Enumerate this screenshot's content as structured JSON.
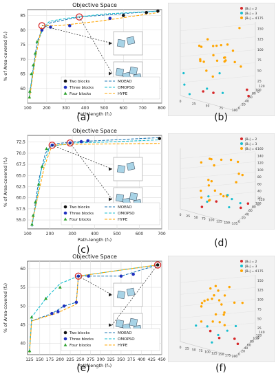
{
  "chart_data": [
    {
      "type": "line",
      "panel_label": "(a)",
      "title": "Objective Space",
      "xlabel": "Path-length (f₁)",
      "ylabel": "% of Area-covered (f₂)",
      "xlim": [
        100,
        800
      ],
      "ylim": [
        55,
        87
      ],
      "xticks": [
        "100",
        "200",
        "300",
        "400",
        "500",
        "600",
        "700",
        "800"
      ],
      "yticks": [
        "60",
        "65",
        "70",
        "75",
        "80",
        "85"
      ],
      "grid": true,
      "legend_position": "lower-right",
      "legend": [
        "Two blocks",
        "Three blocks",
        "Four blocks",
        "MOEAD",
        "OMOPSO",
        "HYPE"
      ],
      "series": [
        {
          "name": "MOEAD",
          "color": "#1f77b4",
          "x": [
            110,
            130,
            150,
            175,
            220,
            370,
            780
          ],
          "y": [
            57,
            67,
            76,
            80,
            82.5,
            84.5,
            86.5
          ]
        },
        {
          "name": "OMOPSO",
          "color": "#17becf",
          "x": [
            110,
            135,
            160,
            185,
            215,
            300,
            500,
            780
          ],
          "y": [
            58,
            69,
            77,
            81,
            83,
            84,
            85.5,
            86.5
          ]
        },
        {
          "name": "HYPE",
          "color": "#ffa500",
          "x": [
            110,
            140,
            175,
            260,
            470,
            780
          ],
          "y": [
            56.5,
            70,
            81.5,
            81.5,
            83,
            86
          ]
        }
      ],
      "points": [
        {
          "group": "Four blocks",
          "x": [
            110,
            112,
            120,
            130,
            140,
            150
          ],
          "y": [
            57,
            59,
            65,
            68,
            72,
            76
          ]
        },
        {
          "group": "Three blocks",
          "x": [
            175,
            220,
            320,
            530
          ],
          "y": [
            80,
            81,
            81.5,
            84
          ]
        },
        {
          "group": "Two blocks",
          "x": [
            600,
            720,
            780
          ],
          "y": [
            85,
            86,
            86.5
          ]
        }
      ],
      "circled": [
        {
          "x": 175,
          "y": 81.5
        },
        {
          "x": 370,
          "y": 84.5
        }
      ]
    },
    {
      "type": "line",
      "panel_label": "(c)",
      "title": "Objective Space",
      "xlabel": "Path-length (f₁)",
      "ylabel": "% of Area-covered (f₂)",
      "xlim": [
        100,
        700
      ],
      "ylim": [
        53,
        74
      ],
      "xticks": [
        "100",
        "200",
        "300",
        "400",
        "500",
        "600",
        "700"
      ],
      "yticks": [
        "55.0",
        "57.5",
        "60.0",
        "62.5",
        "65.0",
        "67.5",
        "70.0",
        "72.5"
      ],
      "grid": true,
      "legend_position": "lower-right",
      "legend": [
        "Two blocks",
        "Three blocks",
        "Four blocks",
        "MOEAD",
        "OMOPSO",
        "HYPE"
      ],
      "series": [
        {
          "name": "MOEAD",
          "color": "#1f77b4",
          "x": [
            120,
            130,
            150,
            180,
            210,
            290,
            690
          ],
          "y": [
            53.5,
            57,
            64,
            70,
            72,
            72.5,
            73.5
          ]
        },
        {
          "name": "OMOPSO",
          "color": "#17becf",
          "x": [
            120,
            140,
            160,
            200,
            300,
            450,
            690
          ],
          "y": [
            54,
            59,
            66,
            71.5,
            72.3,
            72.5,
            73
          ]
        },
        {
          "name": "HYPE",
          "color": "#ffa500",
          "x": [
            120,
            145,
            175,
            210,
            300,
            690
          ],
          "y": [
            54.5,
            60,
            67,
            71.8,
            72,
            72.2
          ]
        }
      ],
      "points": [
        {
          "group": "Four blocks",
          "x": [
            120,
            125,
            135,
            150,
            165,
            185
          ],
          "y": [
            54,
            56,
            59,
            63,
            67,
            71
          ]
        },
        {
          "group": "Three blocks",
          "x": [
            210,
            290,
            340,
            370
          ],
          "y": [
            71.8,
            72.3,
            72.6,
            72.8
          ]
        },
        {
          "group": "Two blocks",
          "x": [
            690
          ],
          "y": [
            73.3
          ]
        }
      ],
      "circled": [
        {
          "x": 210,
          "y": 71.8
        },
        {
          "x": 290,
          "y": 72.3
        }
      ]
    },
    {
      "type": "line",
      "panel_label": "(e)",
      "title": "Objective Space",
      "xlabel": "Path-length (f₁)",
      "ylabel": "% of Area-covered (f₂)",
      "xlim": [
        120,
        450
      ],
      "ylim": [
        37,
        62
      ],
      "xticks": [
        "125",
        "150",
        "175",
        "200",
        "225",
        "250",
        "275",
        "300",
        "325",
        "350",
        "375",
        "400",
        "425",
        "450"
      ],
      "yticks": [
        "40",
        "45",
        "50",
        "55",
        "60"
      ],
      "grid": true,
      "legend_position": "lower-right",
      "legend": [
        "Two blocks",
        "Three blocks",
        "Four blocks",
        "MOEAD",
        "OMOPSO",
        "HYPE"
      ],
      "series": [
        {
          "name": "MOEAD",
          "color": "#1f77b4",
          "x": [
            125,
            130,
            180,
            210,
            240,
            245,
            350,
            440
          ],
          "y": [
            38,
            46,
            48,
            50,
            51,
            58,
            58,
            61
          ]
        },
        {
          "name": "OMOPSO",
          "color": "#17becf",
          "x": [
            125,
            130,
            165,
            200,
            245,
            440
          ],
          "y": [
            38,
            47,
            52,
            56,
            58,
            61
          ]
        },
        {
          "name": "HYPE",
          "color": "#ffa500",
          "x": [
            125,
            130,
            190,
            240,
            245,
            440
          ],
          "y": [
            37.5,
            46,
            48,
            50.5,
            58,
            61
          ]
        }
      ],
      "points": [
        {
          "group": "Four blocks",
          "x": [
            125,
            130,
            165,
            200
          ],
          "y": [
            38,
            47,
            52,
            55
          ]
        },
        {
          "group": "Three blocks",
          "x": [
            180,
            195,
            210,
            240,
            245,
            270,
            350,
            380
          ],
          "y": [
            48,
            48.5,
            50,
            51,
            58,
            58,
            58,
            58.5
          ]
        },
        {
          "group": "Two blocks",
          "x": [
            440
          ],
          "y": [
            61
          ]
        }
      ],
      "circled": [
        {
          "x": 245,
          "y": 58
        },
        {
          "x": 440,
          "y": 61
        }
      ]
    },
    {
      "type": "scatter",
      "panel_label": "(b)",
      "legend": [
        "|Bₙ| = 2",
        "|Bₙ| = 3",
        "|Bₙ| = 4"
      ],
      "legend_colors": [
        "#d62728",
        "#17becf",
        "#ffa500"
      ],
      "z_ticks": [
        "175",
        "150",
        "125",
        "100",
        "75",
        "50",
        "25",
        "0"
      ],
      "x_ticks": [
        "0",
        "25",
        "50",
        "75",
        "100"
      ],
      "y_ticks": [
        "0",
        "20",
        "40",
        "60",
        "80",
        "100",
        "120"
      ]
    },
    {
      "type": "scatter",
      "panel_label": "(d)",
      "legend": [
        "|Bₙ| = 2",
        "|Bₙ| = 3",
        "|Bₙ| = 4"
      ],
      "legend_colors": [
        "#d62728",
        "#17becf",
        "#ffa500"
      ],
      "z_ticks": [
        "160",
        "140",
        "120",
        "100",
        "80",
        "60",
        "40",
        "20",
        "0"
      ],
      "x_ticks": [
        "0",
        "25",
        "50",
        "75",
        "100",
        "125",
        "150",
        "175"
      ],
      "y_ticks": [
        "0",
        "20",
        "40",
        "60",
        "80",
        "100",
        "120"
      ]
    },
    {
      "type": "scatter",
      "panel_label": "(f)",
      "legend": [
        "|Bₙ| = 2",
        "|Bₙ| = 3",
        "|Bₙ| = 4"
      ],
      "legend_colors": [
        "#d62728",
        "#17becf",
        "#ffa500"
      ],
      "z_ticks": [
        "175",
        "150",
        "125",
        "100",
        "75",
        "50",
        "25",
        "0"
      ],
      "x_ticks": [
        "0",
        "25",
        "50",
        "75",
        "100",
        "125",
        "150",
        "175",
        "200"
      ],
      "y_ticks": [
        "0",
        "20",
        "40",
        "60",
        "80",
        "100",
        "120",
        "140"
      ]
    }
  ],
  "colors": {
    "two_blocks": "#111111",
    "three_blocks": "#1f2fbf",
    "four_blocks": "#2ca02c",
    "grid": "#dcdcdc",
    "axes_bg": "#ffffff",
    "scatter_bg": "#f2f2f2"
  },
  "icons": [
    "block-configuration-icon",
    "inset-frame-icon"
  ]
}
